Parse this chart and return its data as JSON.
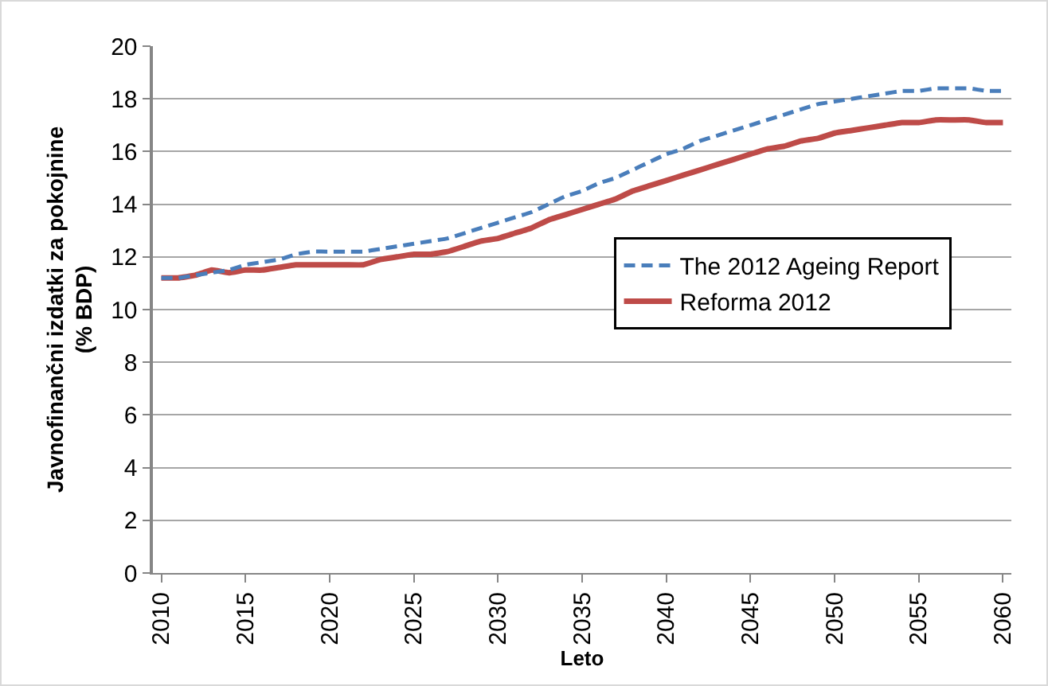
{
  "chart_data": {
    "type": "line",
    "xlabel": "Leto",
    "ylabel": "Javnofinančni izdatki za pokojnine\n(% BDP)",
    "x": [
      2010,
      2011,
      2012,
      2013,
      2014,
      2015,
      2016,
      2017,
      2018,
      2019,
      2020,
      2021,
      2022,
      2023,
      2024,
      2025,
      2026,
      2027,
      2028,
      2029,
      2030,
      2031,
      2032,
      2033,
      2034,
      2035,
      2036,
      2037,
      2038,
      2039,
      2040,
      2041,
      2042,
      2043,
      2044,
      2045,
      2046,
      2047,
      2048,
      2049,
      2050,
      2051,
      2052,
      2053,
      2054,
      2055,
      2056,
      2057,
      2058,
      2059,
      2060
    ],
    "series": [
      {
        "name": "The 2012 Ageing Report",
        "color": "#4a7ebb",
        "line_style": "dashed",
        "values": [
          11.2,
          11.2,
          11.3,
          11.4,
          11.5,
          11.7,
          11.8,
          11.9,
          12.1,
          12.2,
          12.2,
          12.2,
          12.2,
          12.3,
          12.4,
          12.5,
          12.6,
          12.7,
          12.9,
          13.1,
          13.3,
          13.5,
          13.7,
          14.0,
          14.3,
          14.5,
          14.8,
          15.0,
          15.3,
          15.6,
          15.9,
          16.1,
          16.4,
          16.6,
          16.8,
          17.0,
          17.2,
          17.4,
          17.6,
          17.8,
          17.9,
          18.0,
          18.1,
          18.2,
          18.3,
          18.3,
          18.4,
          18.4,
          18.4,
          18.3,
          18.3
        ]
      },
      {
        "name": "Reforma 2012",
        "color": "#be4b48",
        "line_style": "solid",
        "values": [
          11.2,
          11.2,
          11.3,
          11.5,
          11.4,
          11.5,
          11.5,
          11.6,
          11.7,
          11.7,
          11.7,
          11.7,
          11.7,
          11.9,
          12.0,
          12.1,
          12.1,
          12.2,
          12.4,
          12.6,
          12.7,
          12.9,
          13.1,
          13.4,
          13.6,
          13.8,
          14.0,
          14.2,
          14.5,
          14.7,
          14.9,
          15.1,
          15.3,
          15.5,
          15.7,
          15.9,
          16.1,
          16.2,
          16.4,
          16.5,
          16.7,
          16.8,
          16.9,
          17.0,
          17.1,
          17.1,
          17.2,
          17.2,
          17.2,
          17.1,
          17.1
        ]
      }
    ],
    "xlim": [
      2009.5,
      2060.5
    ],
    "xticks": [
      2010,
      2015,
      2020,
      2025,
      2030,
      2035,
      2040,
      2045,
      2050,
      2055,
      2060
    ],
    "ylim": [
      0,
      20
    ],
    "yticks": [
      0,
      2,
      4,
      6,
      8,
      10,
      12,
      14,
      16,
      18,
      20
    ],
    "grid": "y",
    "legend": "right",
    "marker": "none"
  }
}
